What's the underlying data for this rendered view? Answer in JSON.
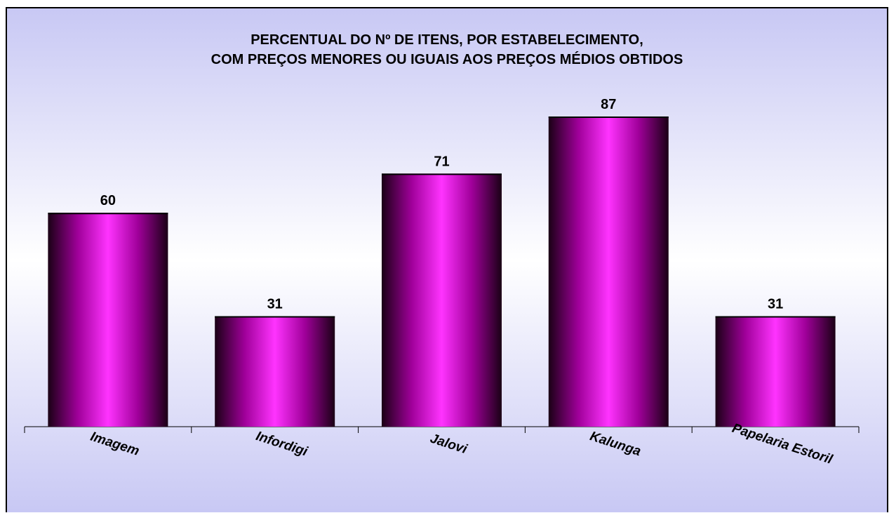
{
  "chart_data": {
    "type": "bar",
    "title_lines": [
      "PERCENTUAL DO Nº DE ITENS, POR ESTABELECIMENTO,",
      "COM PREÇOS MENORES OU IGUAIS AOS PREÇOS MÉDIOS OBTIDOS"
    ],
    "categories": [
      "Imagem",
      "Infordigi",
      "Jalovi",
      "Kalunga",
      "Papelaria Estoril"
    ],
    "values": [
      60,
      31,
      71,
      87,
      31
    ],
    "ylim": [
      0,
      100
    ],
    "grid": false,
    "legend": "none",
    "colors": {
      "bar_center": "#ff33ff",
      "bar_mid": "#a0009a",
      "bar_edge": "#1a0015",
      "background_top": "#c8c8f4",
      "background_mid": "#ffffff",
      "background_bottom": "#c8c8f4"
    }
  }
}
